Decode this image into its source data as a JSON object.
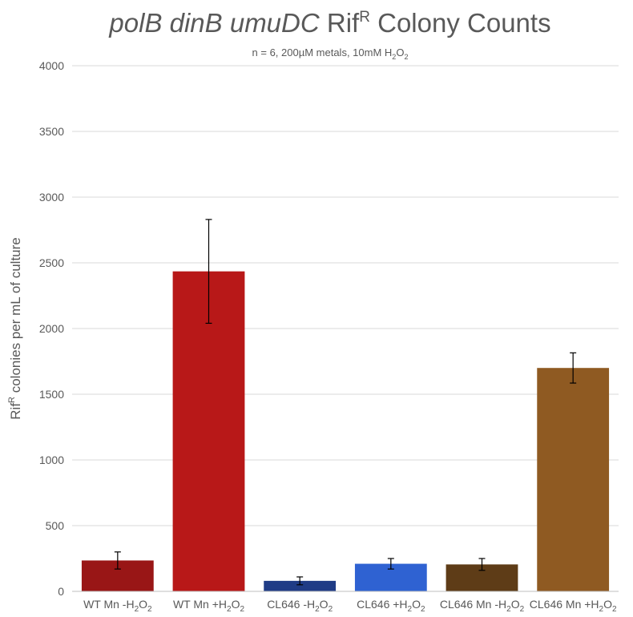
{
  "chart_data": {
    "type": "bar",
    "title": {
      "italic": "polB dinB umuDC",
      "rif": "Rif",
      "rif_sup": "R",
      "rest": "Colony Counts"
    },
    "subtitle": {
      "main": "n = 6, 200µM metals, 10mM H",
      "sub1": "2",
      "o": "O",
      "sub2": "2"
    },
    "ylabel": {
      "pre": "Rif",
      "sup": "R",
      "post": " colonies per mL of culture"
    },
    "ylim": [
      0,
      4000
    ],
    "yticks": [
      0,
      500,
      1000,
      1500,
      2000,
      2500,
      3000,
      3500,
      4000
    ],
    "grid": true,
    "categories": [
      {
        "label": "WT Mn -H",
        "s1": "2",
        "o": "O",
        "s2": "2"
      },
      {
        "label": "WT Mn +H",
        "s1": "2",
        "o": "O",
        "s2": "2"
      },
      {
        "label": "CL646 -H",
        "s1": "2",
        "o": "O",
        "s2": "2"
      },
      {
        "label": "CL646 +H",
        "s1": "2",
        "o": "O",
        "s2": "2"
      },
      {
        "label": "CL646 Mn -H",
        "s1": "2",
        "o": "O",
        "s2": "2"
      },
      {
        "label": "CL646 Mn +H",
        "s1": "2",
        "o": "O",
        "s2": "2"
      }
    ],
    "values": [
      235,
      2435,
      80,
      210,
      205,
      1700
    ],
    "errors": [
      65,
      395,
      30,
      40,
      45,
      115
    ],
    "colors": [
      "#991616",
      "#b81818",
      "#1f3c86",
      "#2f62d2",
      "#5e3c17",
      "#8f5a22"
    ]
  }
}
